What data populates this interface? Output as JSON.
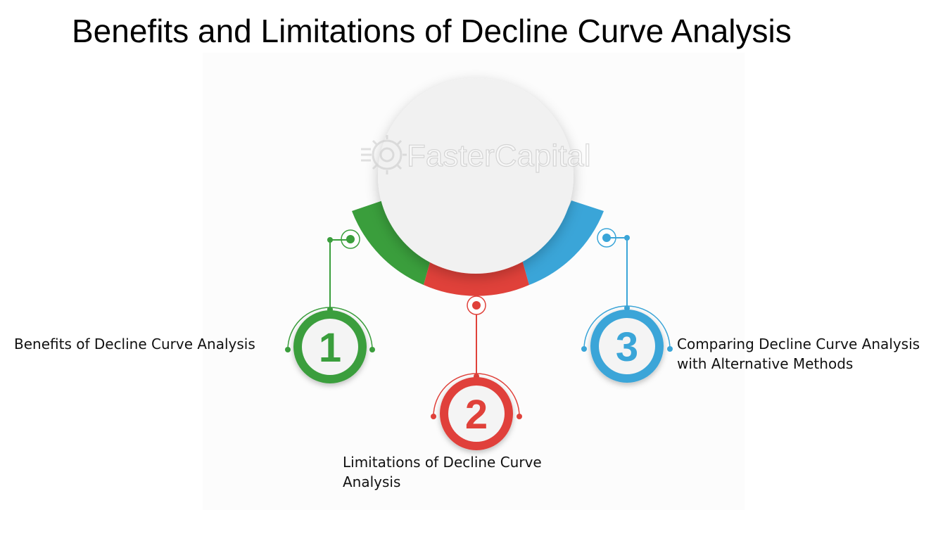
{
  "title": "Benefits and Limitations of Decline Curve Analysis",
  "watermark": "FasterCapital",
  "colors": {
    "green": "#3a9e3c",
    "red": "#e0413a",
    "blue": "#3aa5d8",
    "hub": "#f1f1f1"
  },
  "items": [
    {
      "number": "1",
      "label": "Benefits of Decline Curve Analysis",
      "color": "green"
    },
    {
      "number": "2",
      "label": "Limitations of Decline Curve Analysis",
      "color": "red"
    },
    {
      "number": "3",
      "label": "Comparing Decline Curve Analysis with Alternative Methods",
      "color": "blue"
    }
  ]
}
